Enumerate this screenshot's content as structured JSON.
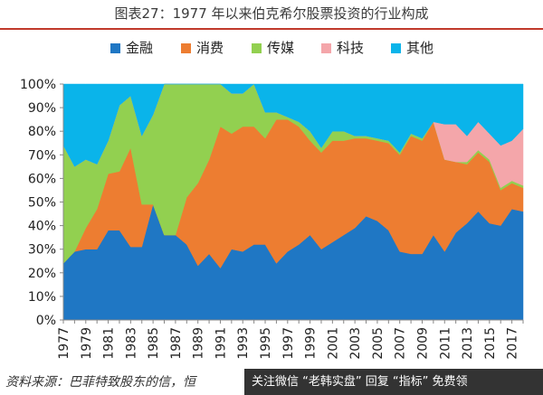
{
  "figure_title": "图表27：1977 年以来伯克希尔股票投资的行业构成",
  "source_note": "资料来源：巴菲特致股东的信，恒",
  "watermark": "关注微信 “老韩实盘” 回复 “指标” 免费领",
  "chart_data": {
    "type": "area",
    "stacked": true,
    "title": "",
    "xlabel": "",
    "ylabel": "",
    "ylim": [
      0,
      100
    ],
    "y_unit": "%",
    "y_ticks": [
      0,
      10,
      20,
      30,
      40,
      50,
      60,
      70,
      80,
      90,
      100
    ],
    "x_ticks": [
      "1977",
      "1979",
      "1981",
      "1983",
      "1985",
      "1987",
      "1989",
      "1991",
      "1993",
      "1995",
      "1997",
      "1999",
      "2001",
      "2003",
      "2005",
      "2007",
      "2009",
      "2011",
      "2013",
      "2015",
      "2017"
    ],
    "legend_position": "top",
    "x": [
      1977,
      1978,
      1979,
      1980,
      1981,
      1982,
      1983,
      1984,
      1985,
      1986,
      1987,
      1988,
      1989,
      1990,
      1991,
      1992,
      1993,
      1994,
      1995,
      1996,
      1997,
      1998,
      1999,
      2000,
      2001,
      2002,
      2003,
      2004,
      2005,
      2006,
      2007,
      2008,
      2009,
      2010,
      2011,
      2012,
      2013,
      2014,
      2015,
      2016,
      2017,
      2018
    ],
    "series": [
      {
        "name": "金融",
        "color": "#1f77c4",
        "values": [
          24,
          29,
          30,
          30,
          38,
          38,
          31,
          31,
          49,
          36,
          36,
          32,
          23,
          28,
          22,
          30,
          29,
          32,
          32,
          24,
          29,
          32,
          36,
          30,
          33,
          36,
          39,
          44,
          42,
          38,
          29,
          28,
          28,
          36,
          29,
          37,
          41,
          46,
          41,
          40,
          47,
          46
        ]
      },
      {
        "name": "消费",
        "color": "#ed7d31",
        "values": [
          0,
          0,
          9,
          17,
          24,
          25,
          42,
          18,
          0,
          0,
          0,
          20,
          35,
          40,
          60,
          49,
          53,
          50,
          45,
          61,
          56,
          50,
          40,
          41,
          43,
          40,
          38,
          33,
          34,
          37,
          41,
          50,
          48,
          48,
          39,
          30,
          25,
          25,
          26,
          15,
          11,
          10
        ]
      },
      {
        "name": "传媒",
        "color": "#92d050",
        "values": [
          50,
          36,
          29,
          19,
          14,
          28,
          22,
          29,
          38,
          64,
          64,
          48,
          42,
          32,
          18,
          17,
          14,
          18,
          11,
          3,
          1,
          2,
          4,
          2,
          4,
          4,
          1,
          1,
          1,
          1,
          1,
          1,
          1,
          0,
          0,
          0,
          1,
          1,
          1,
          1,
          1,
          1
        ]
      },
      {
        "name": "科技",
        "color": "#f4a6aa",
        "values": [
          0,
          0,
          0,
          0,
          0,
          0,
          0,
          0,
          0,
          0,
          0,
          0,
          0,
          0,
          0,
          0,
          0,
          0,
          0,
          0,
          0,
          0,
          0,
          0,
          0,
          0,
          0,
          0,
          0,
          0,
          0,
          0,
          0,
          0,
          15,
          16,
          11,
          12,
          11,
          18,
          17,
          24
        ]
      },
      {
        "name": "其他",
        "color": "#0ab4ea",
        "values": [
          26,
          35,
          32,
          34,
          24,
          9,
          5,
          22,
          13,
          0,
          0,
          0,
          0,
          0,
          0,
          4,
          4,
          0,
          12,
          12,
          14,
          16,
          20,
          27,
          20,
          20,
          22,
          22,
          23,
          24,
          29,
          21,
          23,
          16,
          17,
          17,
          22,
          16,
          21,
          26,
          24,
          19
        ]
      }
    ]
  }
}
